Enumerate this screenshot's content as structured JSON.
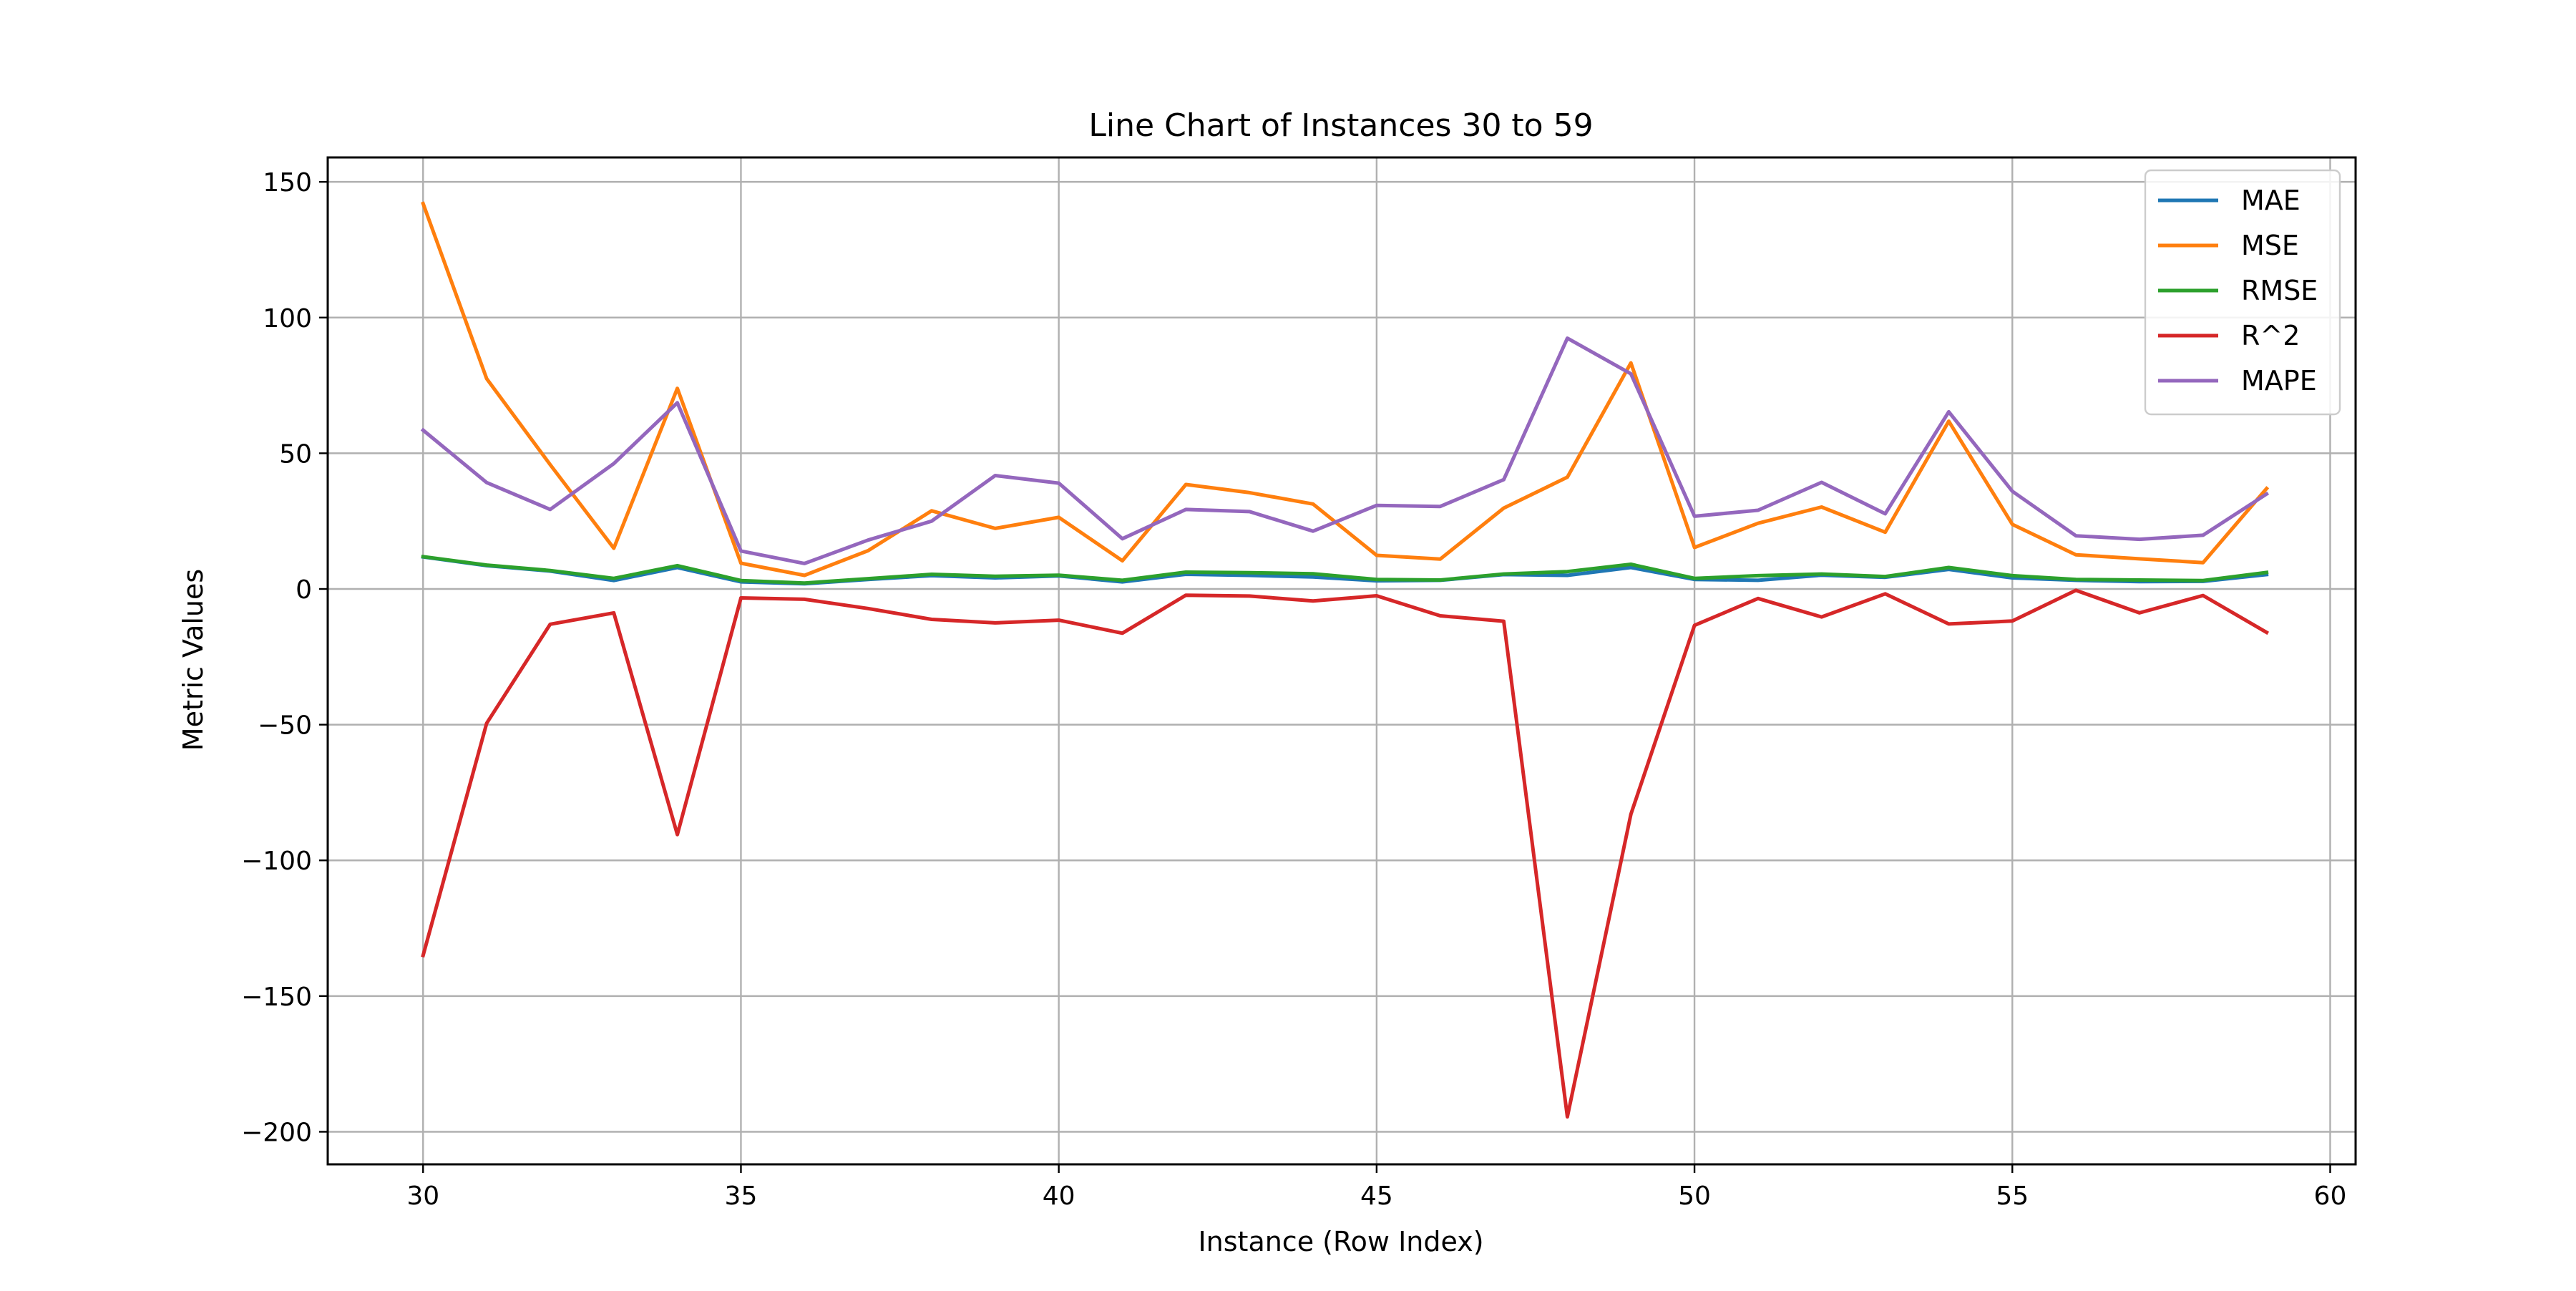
{
  "chart_data": {
    "type": "line",
    "title": "Line Chart of Instances 30 to 59",
    "xlabel": "Instance (Row Index)",
    "ylabel": "Metric Values",
    "xlim": [
      28.5,
      60.4
    ],
    "ylim": [
      -212,
      159
    ],
    "x_ticks": [
      30,
      35,
      40,
      45,
      50,
      55,
      60
    ],
    "y_ticks": [
      150,
      100,
      50,
      0,
      -50,
      -100,
      -150,
      -200
    ],
    "x_tick_labels": [
      "30",
      "35",
      "40",
      "45",
      "50",
      "55",
      "60"
    ],
    "y_tick_labels": [
      "150",
      "100",
      "50",
      "0",
      "−50",
      "−100",
      "−150",
      "−200"
    ],
    "grid": true,
    "legend_position": "top-right",
    "x": [
      30,
      31,
      32,
      33,
      34,
      35,
      36,
      37,
      38,
      39,
      40,
      41,
      42,
      43,
      44,
      45,
      46,
      47,
      48,
      49,
      50,
      51,
      52,
      53,
      54,
      55,
      56,
      57,
      58,
      59
    ],
    "series": [
      {
        "name": "MAE",
        "color": "#1f77b4",
        "values": [
          11.8,
          8.6,
          6.6,
          3.1,
          7.9,
          2.6,
          1.9,
          3.5,
          4.9,
          4.1,
          4.8,
          2.6,
          5.4,
          5.0,
          4.4,
          3.0,
          3.2,
          5.3,
          5.0,
          7.9,
          3.5,
          3.2,
          5.1,
          4.3,
          7.2,
          4.1,
          3.2,
          2.7,
          2.8,
          5.3
        ]
      },
      {
        "name": "MSE",
        "color": "#ff7f0e",
        "values": [
          142.0,
          77.5,
          45.8,
          15.0,
          73.9,
          9.5,
          5.0,
          14.1,
          28.8,
          22.3,
          26.4,
          10.4,
          38.5,
          35.5,
          31.3,
          12.4,
          11.0,
          29.8,
          41.2,
          83.3,
          15.3,
          24.2,
          30.2,
          20.9,
          61.8,
          23.8,
          12.6,
          11.1,
          9.7,
          37.0
        ]
      },
      {
        "name": "RMSE",
        "color": "#2ca02c",
        "values": [
          11.9,
          8.8,
          6.8,
          3.9,
          8.6,
          3.1,
          2.2,
          3.8,
          5.4,
          4.7,
          5.1,
          3.2,
          6.2,
          6.0,
          5.6,
          3.5,
          3.3,
          5.5,
          6.4,
          9.1,
          3.9,
          4.9,
          5.5,
          4.6,
          7.9,
          4.9,
          3.5,
          3.3,
          3.1,
          6.1
        ]
      },
      {
        "name": "R^2",
        "color": "#d62728",
        "values": [
          -135.0,
          -49.5,
          -13.0,
          -8.8,
          -90.5,
          -3.3,
          -3.8,
          -7.2,
          -11.2,
          -12.5,
          -11.5,
          -16.3,
          -2.3,
          -2.6,
          -4.4,
          -2.5,
          -9.9,
          -11.9,
          -194.5,
          -83.0,
          -13.4,
          -3.5,
          -10.3,
          -1.8,
          -12.9,
          -11.8,
          -0.5,
          -8.8,
          -2.4,
          -16.0
        ]
      },
      {
        "name": "MAPE",
        "color": "#9467bd",
        "values": [
          58.5,
          39.2,
          29.3,
          46.2,
          68.6,
          14.0,
          9.4,
          18.0,
          25.0,
          41.8,
          39.0,
          18.5,
          29.3,
          28.5,
          21.3,
          30.8,
          30.4,
          40.3,
          92.4,
          79.3,
          26.8,
          29.0,
          39.3,
          27.7,
          65.3,
          36.0,
          19.6,
          18.3,
          19.8,
          35.0
        ]
      }
    ]
  }
}
